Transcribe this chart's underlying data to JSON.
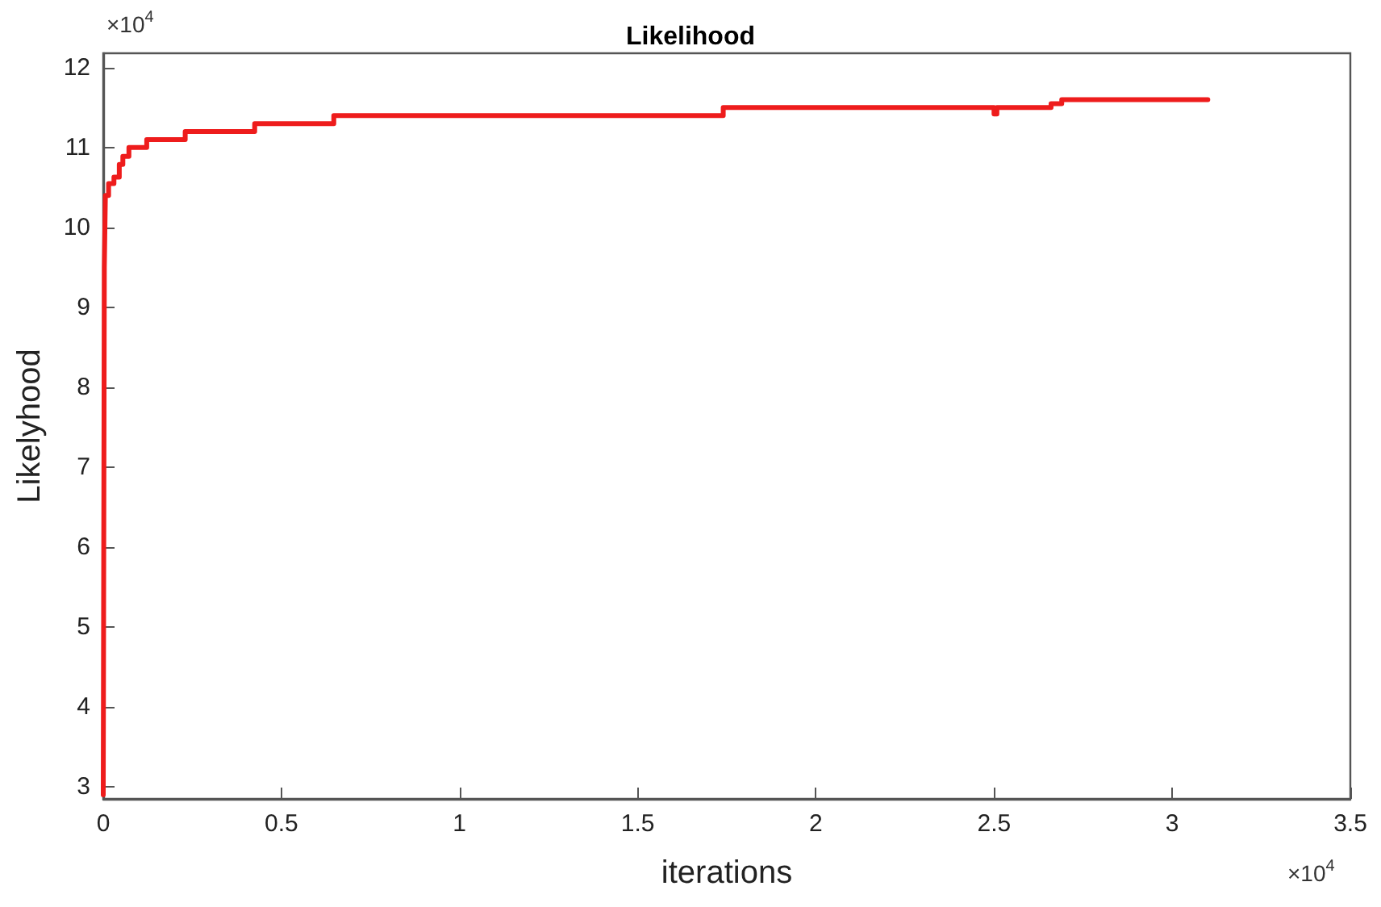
{
  "chart_data": {
    "type": "step",
    "title": "Likelihood",
    "xlabel": "iterations",
    "ylabel": "Likelyhood",
    "annotations": [
      "×10$^{4}$",
      "×10$^{4}$"
    ],
    "x": [
      0,
      0.003,
      0.006,
      0.015,
      0.03,
      0.045,
      0.055,
      0.072,
      0.122,
      0.23,
      0.425,
      0.647,
      1.74,
      2.5,
      2.508,
      2.66,
      2.69,
      3.1
    ],
    "series": [
      {
        "color": "#ee1c1c",
        "values": [
          2.9,
          9.5,
          10.4,
          10.55,
          10.63,
          10.79,
          10.89,
          11.0,
          11.1,
          11.2,
          11.3,
          11.4,
          11.5,
          11.42,
          11.5,
          11.55,
          11.6,
          11.6
        ]
      }
    ],
    "xlim": [
      0,
      3.5
    ],
    "ylim": [
      2.85,
      12.18
    ],
    "xticks": [
      0,
      0.5,
      1,
      1.5,
      2,
      2.5,
      3,
      3.5
    ],
    "yticks": [
      3,
      4,
      5,
      6,
      7,
      8,
      9,
      10,
      11,
      12
    ],
    "grid": false,
    "marker": "none",
    "line_style": "solid"
  }
}
